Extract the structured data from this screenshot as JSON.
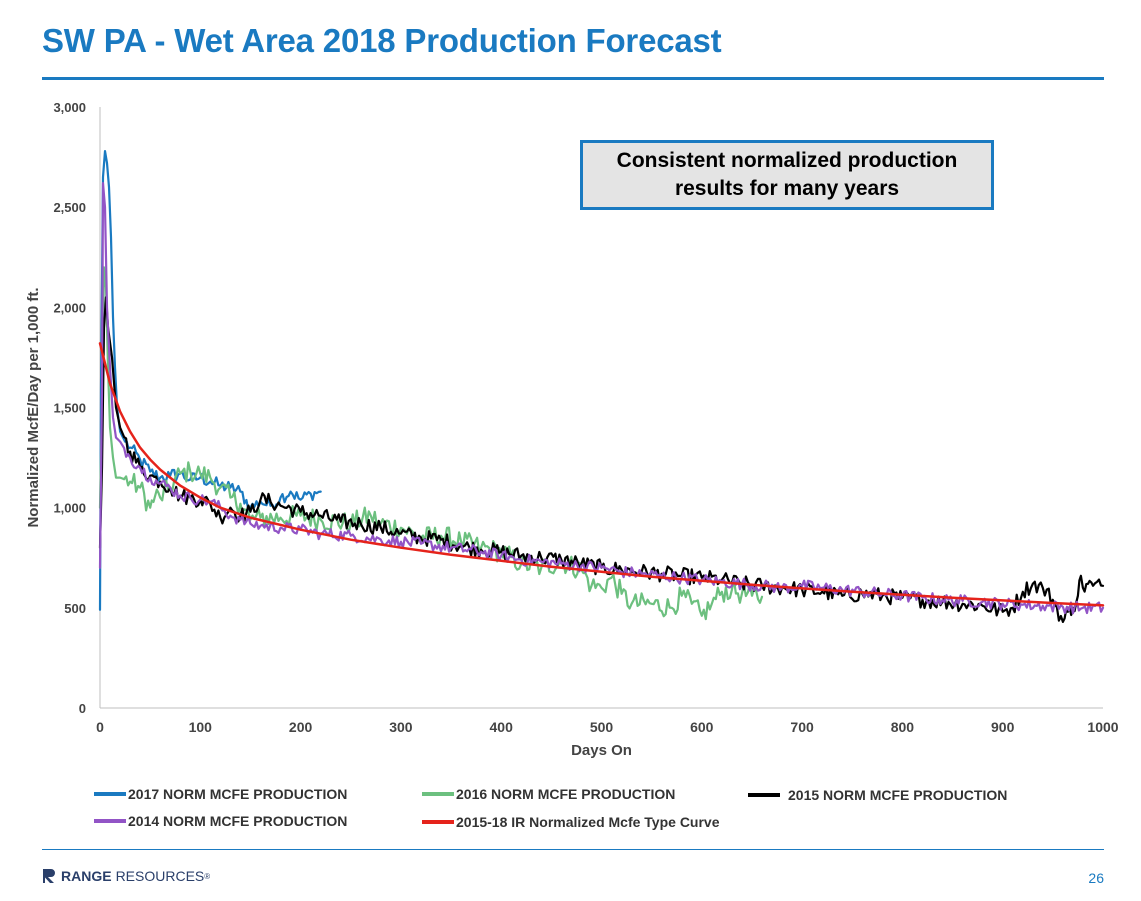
{
  "page": {
    "title": "SW PA - Wet Area 2018 Production Forecast",
    "callout": "Consistent normalized production results for many years",
    "brand_primary": "RANGE",
    "brand_secondary": "RESOURCES",
    "brand_mark": "®",
    "page_number": "26",
    "accent_color": "#1a7ac1"
  },
  "chart_data": {
    "type": "line",
    "title": "",
    "xlabel": "Days On",
    "ylabel": "Normalized McfE/Day per 1,000 ft.",
    "xlim": [
      0,
      1000
    ],
    "ylim": [
      0,
      3000
    ],
    "x_ticks": [
      "0",
      "100",
      "200",
      "300",
      "400",
      "500",
      "600",
      "700",
      "800",
      "900",
      "1000"
    ],
    "y_ticks": [
      "0",
      "500",
      "1,000",
      "1,500",
      "2,000",
      "2,500",
      "3,000"
    ],
    "grid": false,
    "legend_position": "bottom",
    "series": [
      {
        "name": "2017 NORM MCFE PRODUCTION",
        "color": "#1a7ac1",
        "points": [
          [
            0,
            490
          ],
          [
            1,
            1600
          ],
          [
            3,
            2650
          ],
          [
            5,
            2780
          ],
          [
            7,
            2720
          ],
          [
            9,
            2600
          ],
          [
            11,
            2350
          ],
          [
            13,
            1950
          ],
          [
            15,
            1700
          ],
          [
            17,
            1500
          ],
          [
            20,
            1380
          ],
          [
            25,
            1330
          ],
          [
            30,
            1300
          ],
          [
            40,
            1240
          ],
          [
            50,
            1180
          ],
          [
            60,
            1150
          ],
          [
            70,
            1160
          ],
          [
            80,
            1170
          ],
          [
            90,
            1140
          ],
          [
            100,
            1150
          ],
          [
            110,
            1130
          ],
          [
            120,
            1110
          ],
          [
            130,
            1100
          ],
          [
            140,
            1080
          ],
          [
            150,
            1000
          ],
          [
            160,
            1030
          ],
          [
            170,
            1010
          ],
          [
            180,
            1050
          ],
          [
            190,
            1080
          ],
          [
            200,
            1040
          ],
          [
            210,
            1070
          ],
          [
            220,
            1080
          ]
        ]
      },
      {
        "name": "2016 NORM MCFE PRODUCTION",
        "color": "#6cc07f",
        "points": [
          [
            0,
            1000
          ],
          [
            2,
            1500
          ],
          [
            4,
            2200
          ],
          [
            6,
            2100
          ],
          [
            8,
            1700
          ],
          [
            10,
            1400
          ],
          [
            13,
            1250
          ],
          [
            16,
            1150
          ],
          [
            20,
            1150
          ],
          [
            30,
            1130
          ],
          [
            40,
            1100
          ],
          [
            50,
            1000
          ],
          [
            55,
            1060
          ],
          [
            60,
            1050
          ],
          [
            70,
            1100
          ],
          [
            80,
            1170
          ],
          [
            90,
            1180
          ],
          [
            100,
            1170
          ],
          [
            110,
            1150
          ],
          [
            120,
            1100
          ],
          [
            130,
            1050
          ],
          [
            140,
            1020
          ],
          [
            150,
            940
          ],
          [
            160,
            950
          ],
          [
            180,
            950
          ],
          [
            200,
            960
          ],
          [
            220,
            940
          ],
          [
            250,
            920
          ],
          [
            270,
            960
          ],
          [
            280,
            920
          ],
          [
            300,
            900
          ],
          [
            320,
            850
          ],
          [
            340,
            860
          ],
          [
            360,
            830
          ],
          [
            380,
            800
          ],
          [
            400,
            780
          ],
          [
            420,
            720
          ],
          [
            440,
            700
          ],
          [
            460,
            730
          ],
          [
            480,
            690
          ],
          [
            490,
            610
          ],
          [
            500,
            600
          ],
          [
            510,
            650
          ],
          [
            520,
            570
          ],
          [
            530,
            520
          ],
          [
            550,
            520
          ],
          [
            570,
            500
          ],
          [
            580,
            560
          ],
          [
            590,
            520
          ],
          [
            600,
            460
          ],
          [
            610,
            520
          ],
          [
            620,
            580
          ],
          [
            630,
            590
          ],
          [
            640,
            570
          ],
          [
            650,
            560
          ],
          [
            660,
            555
          ]
        ]
      },
      {
        "name": "2015 NORM MCFE PRODUCTION",
        "color": "#000000",
        "points": [
          [
            0,
            800
          ],
          [
            2,
            1200
          ],
          [
            4,
            1900
          ],
          [
            6,
            2050
          ],
          [
            8,
            1900
          ],
          [
            12,
            1750
          ],
          [
            16,
            1500
          ],
          [
            20,
            1400
          ],
          [
            30,
            1280
          ],
          [
            40,
            1200
          ],
          [
            50,
            1160
          ],
          [
            60,
            1130
          ],
          [
            70,
            1100
          ],
          [
            80,
            1060
          ],
          [
            90,
            1050
          ],
          [
            100,
            1040
          ],
          [
            110,
            1020
          ],
          [
            120,
            950
          ],
          [
            130,
            1000
          ],
          [
            140,
            960
          ],
          [
            150,
            980
          ],
          [
            160,
            1040
          ],
          [
            170,
            1030
          ],
          [
            180,
            1010
          ],
          [
            200,
            980
          ],
          [
            220,
            960
          ],
          [
            240,
            930
          ],
          [
            260,
            920
          ],
          [
            280,
            900
          ],
          [
            300,
            870
          ],
          [
            320,
            850
          ],
          [
            340,
            840
          ],
          [
            360,
            810
          ],
          [
            380,
            790
          ],
          [
            400,
            780
          ],
          [
            420,
            760
          ],
          [
            440,
            750
          ],
          [
            460,
            740
          ],
          [
            480,
            720
          ],
          [
            500,
            700
          ],
          [
            520,
            690
          ],
          [
            540,
            680
          ],
          [
            560,
            670
          ],
          [
            580,
            660
          ],
          [
            600,
            650
          ],
          [
            620,
            640
          ],
          [
            640,
            620
          ],
          [
            660,
            610
          ],
          [
            680,
            600
          ],
          [
            700,
            590
          ],
          [
            720,
            580
          ],
          [
            740,
            560
          ],
          [
            760,
            570
          ],
          [
            780,
            560
          ],
          [
            800,
            550
          ],
          [
            820,
            540
          ],
          [
            840,
            530
          ],
          [
            860,
            520
          ],
          [
            880,
            510
          ],
          [
            900,
            480
          ],
          [
            910,
            500
          ],
          [
            920,
            580
          ],
          [
            930,
            620
          ],
          [
            940,
            600
          ],
          [
            950,
            540
          ],
          [
            960,
            430
          ],
          [
            965,
            480
          ],
          [
            970,
            500
          ],
          [
            975,
            560
          ],
          [
            978,
            660
          ],
          [
            980,
            600
          ],
          [
            985,
            620
          ],
          [
            990,
            610
          ],
          [
            1000,
            610
          ]
        ]
      },
      {
        "name": "2014 NORM MCFE PRODUCTION",
        "color": "#9254c6",
        "points": [
          [
            0,
            700
          ],
          [
            2,
            1600
          ],
          [
            3,
            2620
          ],
          [
            5,
            2500
          ],
          [
            7,
            2000
          ],
          [
            10,
            1700
          ],
          [
            13,
            1450
          ],
          [
            16,
            1350
          ],
          [
            20,
            1330
          ],
          [
            30,
            1250
          ],
          [
            40,
            1200
          ],
          [
            50,
            1150
          ],
          [
            60,
            1120
          ],
          [
            70,
            1100
          ],
          [
            80,
            1060
          ],
          [
            90,
            1050
          ],
          [
            100,
            1040
          ],
          [
            110,
            1030
          ],
          [
            120,
            1000
          ],
          [
            130,
            960
          ],
          [
            140,
            940
          ],
          [
            150,
            920
          ],
          [
            160,
            910
          ],
          [
            180,
            900
          ],
          [
            200,
            890
          ],
          [
            220,
            870
          ],
          [
            250,
            860
          ],
          [
            280,
            840
          ],
          [
            300,
            830
          ],
          [
            320,
            820
          ],
          [
            350,
            800
          ],
          [
            380,
            780
          ],
          [
            400,
            760
          ],
          [
            420,
            740
          ],
          [
            440,
            730
          ],
          [
            460,
            720
          ],
          [
            480,
            710
          ],
          [
            500,
            700
          ],
          [
            520,
            680
          ],
          [
            540,
            670
          ],
          [
            560,
            660
          ],
          [
            580,
            650
          ],
          [
            600,
            640
          ],
          [
            620,
            630
          ],
          [
            640,
            620
          ],
          [
            660,
            610
          ],
          [
            680,
            600
          ],
          [
            700,
            610
          ],
          [
            720,
            600
          ],
          [
            740,
            590
          ],
          [
            760,
            580
          ],
          [
            780,
            570
          ],
          [
            800,
            560
          ],
          [
            820,
            550
          ],
          [
            840,
            540
          ],
          [
            860,
            535
          ],
          [
            880,
            530
          ],
          [
            900,
            520
          ],
          [
            920,
            515
          ],
          [
            940,
            510
          ],
          [
            960,
            505
          ],
          [
            980,
            500
          ],
          [
            1000,
            500
          ]
        ]
      },
      {
        "name": "2015-18 IR Normalized Mcfe Type Curve",
        "color": "#e5231b",
        "points": [
          [
            0,
            1820
          ],
          [
            5,
            1720
          ],
          [
            10,
            1620
          ],
          [
            20,
            1480
          ],
          [
            30,
            1380
          ],
          [
            40,
            1300
          ],
          [
            50,
            1240
          ],
          [
            60,
            1190
          ],
          [
            80,
            1110
          ],
          [
            100,
            1050
          ],
          [
            120,
            1000
          ],
          [
            150,
            950
          ],
          [
            200,
            890
          ],
          [
            250,
            840
          ],
          [
            300,
            800
          ],
          [
            350,
            765
          ],
          [
            400,
            735
          ],
          [
            450,
            705
          ],
          [
            500,
            680
          ],
          [
            550,
            655
          ],
          [
            600,
            635
          ],
          [
            650,
            615
          ],
          [
            700,
            597
          ],
          [
            750,
            580
          ],
          [
            800,
            565
          ],
          [
            850,
            550
          ],
          [
            900,
            537
          ],
          [
            950,
            524
          ],
          [
            1000,
            512
          ]
        ]
      }
    ]
  }
}
